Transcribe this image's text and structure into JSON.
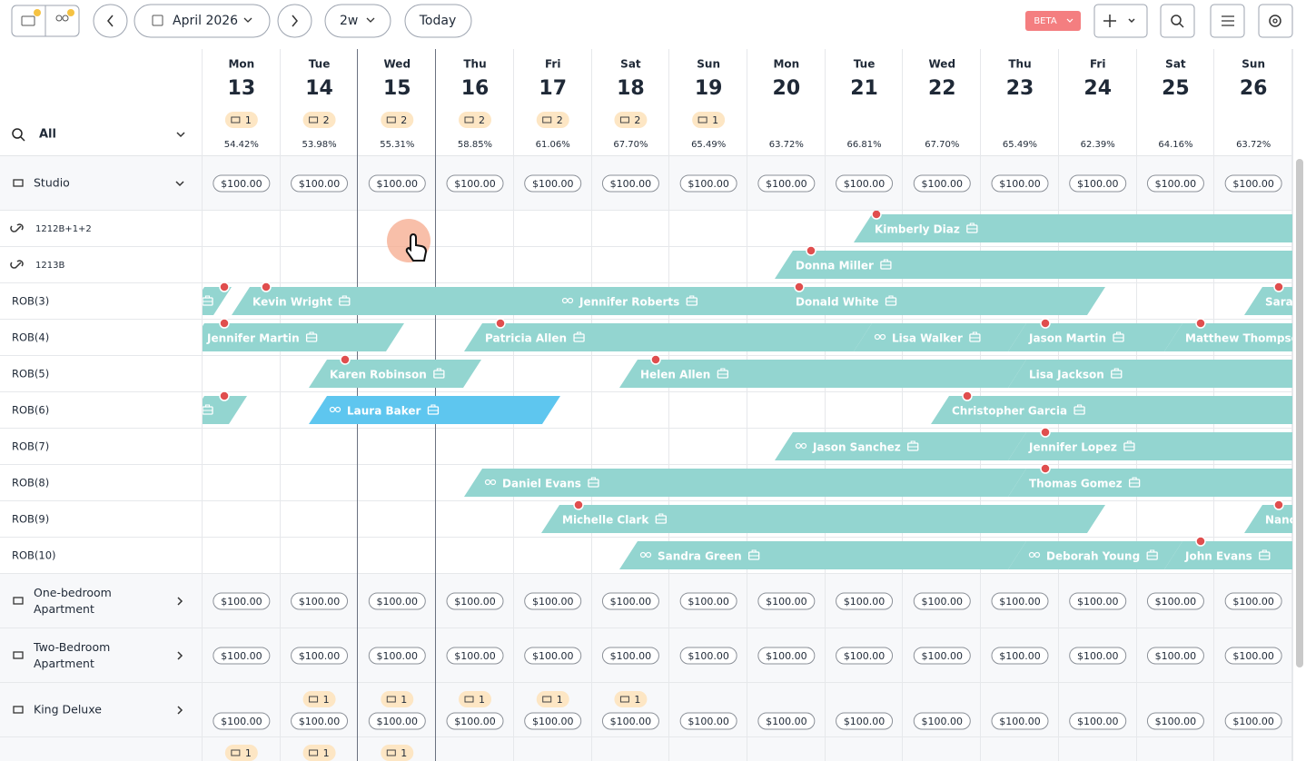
{
  "toolbar": {
    "month": "April 2026",
    "range": "2w",
    "today": "Today",
    "beta": "BETA"
  },
  "filter": "All",
  "days": [
    {
      "weekday": "Mon",
      "date": 13,
      "booked": 1,
      "occupancy": "54.42%"
    },
    {
      "weekday": "Tue",
      "date": 14,
      "booked": 2,
      "occupancy": "53.98%"
    },
    {
      "weekday": "Wed",
      "date": 15,
      "booked": 2,
      "occupancy": "55.31%"
    },
    {
      "weekday": "Thu",
      "date": 16,
      "booked": 2,
      "occupancy": "58.85%"
    },
    {
      "weekday": "Fri",
      "date": 17,
      "booked": 2,
      "occupancy": "61.06%"
    },
    {
      "weekday": "Sat",
      "date": 18,
      "booked": 2,
      "occupancy": "67.70%"
    },
    {
      "weekday": "Sun",
      "date": 19,
      "booked": 1,
      "occupancy": "65.49%"
    },
    {
      "weekday": "Mon",
      "date": 20,
      "occupancy": "63.72%"
    },
    {
      "weekday": "Tue",
      "date": 21,
      "occupancy": "66.81%"
    },
    {
      "weekday": "Wed",
      "date": 22,
      "occupancy": "67.70%"
    },
    {
      "weekday": "Thu",
      "date": 23,
      "occupancy": "65.49%"
    },
    {
      "weekday": "Fri",
      "date": 24,
      "occupancy": "62.39%"
    },
    {
      "weekday": "Sat",
      "date": 25,
      "occupancy": "64.16%"
    },
    {
      "weekday": "Sun",
      "date": 26,
      "occupancy": "63.72%"
    }
  ],
  "categories": [
    {
      "name": "Studio",
      "prices": [
        "$100.00",
        "$100.00",
        "$100.00",
        "$100.00",
        "$100.00",
        "$100.00",
        "$100.00",
        "$100.00",
        "$100.00",
        "$100.00",
        "$100.00",
        "$100.00",
        "$100.00",
        "$100.00"
      ]
    },
    {
      "name": "One-bedroom Apartment",
      "prices": [
        "$100.00",
        "$100.00",
        "$100.00",
        "$100.00",
        "$100.00",
        "$100.00",
        "$100.00",
        "$100.00",
        "$100.00",
        "$100.00",
        "$100.00",
        "$100.00",
        "$100.00",
        "$100.00"
      ]
    },
    {
      "name": "Two-Bedroom Apartment",
      "prices": [
        "$100.00",
        "$100.00",
        "$100.00",
        "$100.00",
        "$100.00",
        "$100.00",
        "$100.00",
        "$100.00",
        "$100.00",
        "$100.00",
        "$100.00",
        "$100.00",
        "$100.00",
        "$100.00"
      ]
    },
    {
      "name": "King Deluxe",
      "badges": [
        null,
        1,
        1,
        1,
        1,
        1,
        null,
        null,
        null,
        null,
        null,
        null,
        null,
        null
      ],
      "prices": [
        "$100.00",
        "$100.00",
        "$100.00",
        "$100.00",
        "$100.00",
        "$100.00",
        "$100.00",
        "$100.00",
        "$100.00",
        "$100.00",
        "$100.00",
        "$100.00",
        "$100.00",
        "$100.00"
      ]
    },
    {
      "badges": [
        1,
        1,
        1,
        null,
        null,
        null,
        null,
        null,
        null,
        null,
        null,
        null,
        null,
        null
      ]
    }
  ],
  "rooms": [
    {
      "name": "1212B+1+2",
      "bookings": [
        "Kimberly Diaz"
      ]
    },
    {
      "name": "1213B",
      "bookings": [
        "Donna Miller"
      ]
    },
    {
      "name": "ROB(3)",
      "bookings": [
        "Kevin Wright",
        "Jennifer Roberts",
        "Donald White",
        "Sarah"
      ]
    },
    {
      "name": "ROB(4)",
      "bookings": [
        "Jennifer Martin",
        "Patricia Allen",
        "Lisa Walker",
        "Jason Martin",
        "Matthew Thompson"
      ]
    },
    {
      "name": "ROB(5)",
      "bookings": [
        "Karen Robinson",
        "Helen Allen",
        "Lisa Jackson"
      ]
    },
    {
      "name": "ROB(6)",
      "bookings": [
        "Laura Baker",
        "Christopher Garcia"
      ]
    },
    {
      "name": "ROB(7)",
      "bookings": [
        "Jason Sanchez",
        "Jennifer Lopez"
      ]
    },
    {
      "name": "ROB(8)",
      "bookings": [
        "Daniel Evans",
        "Thomas Gomez"
      ]
    },
    {
      "name": "ROB(9)",
      "bookings": [
        "Michelle Clark",
        "Nanc"
      ]
    },
    {
      "name": "ROB(10)",
      "bookings": [
        "Sandra Green",
        "Deborah Young",
        "John Evans"
      ]
    }
  ]
}
